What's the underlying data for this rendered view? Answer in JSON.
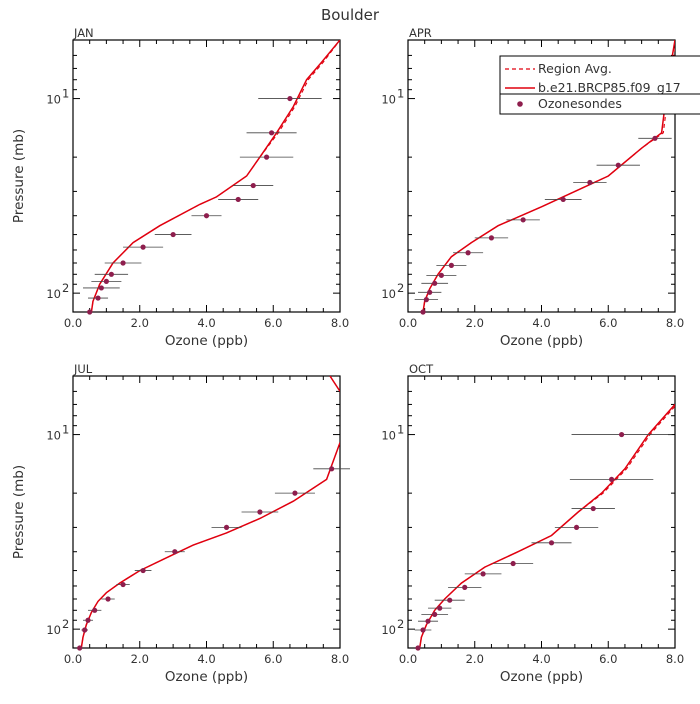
{
  "figure_title": "Boulder",
  "legend": {
    "region_avg": "Region Avg.",
    "model": "b.e21.BRCP85.f09_g17",
    "obs": "Ozonesondes"
  },
  "colors": {
    "model": "#e0000f",
    "region_avg": "#e0000f",
    "obs": "#8e1e4d",
    "errbar": "#444444"
  },
  "chart_data": [
    {
      "type": "line",
      "title": "JAN",
      "xlabel": "Ozone (ppb)",
      "ylabel": "Pressure (mb)",
      "xlim": [
        0.0,
        8.0
      ],
      "ylim": [
        125,
        5
      ],
      "xticks": [
        "0.0",
        "2.0",
        "4.0",
        "6.0",
        "8.0"
      ],
      "yticks": [
        {
          "value": 10,
          "label": "10",
          "exp": "1"
        },
        {
          "value": 100,
          "label": "10",
          "exp": "2"
        }
      ],
      "model": {
        "x": [
          0.55,
          0.6,
          0.8,
          1.2,
          1.8,
          2.6,
          3.8,
          4.3,
          5.2,
          5.6,
          6.1,
          6.6,
          7.0,
          7.45,
          8.0
        ],
        "y": [
          125,
          110,
          90,
          70,
          55,
          45,
          35,
          32,
          25,
          20,
          15,
          11,
          8,
          6.5,
          5
        ]
      },
      "region_avg": {
        "x": [
          0.55,
          0.6,
          0.8,
          1.2,
          1.8,
          2.6,
          3.8,
          4.3,
          5.2,
          5.6,
          6.15,
          6.65,
          7.05,
          7.5,
          8.0
        ],
        "y": [
          125,
          110,
          90,
          70,
          55,
          45,
          35,
          32,
          25,
          20,
          15,
          11,
          8,
          6.5,
          5
        ]
      },
      "ozonesondes": {
        "x": [
          0.5,
          0.75,
          0.85,
          1.0,
          1.15,
          1.5,
          2.1,
          3.0,
          4.0,
          4.95,
          5.4,
          5.8,
          5.95,
          6.5
        ],
        "y": [
          125,
          106,
          94,
          87,
          80,
          70,
          58,
          50,
          40,
          33,
          28,
          20,
          15,
          10
        ],
        "xerr": [
          0.0,
          0.3,
          0.55,
          0.45,
          0.5,
          0.55,
          0.6,
          0.55,
          0.45,
          0.6,
          0.6,
          0.8,
          0.75,
          0.95
        ]
      }
    },
    {
      "type": "line",
      "title": "APR",
      "xlabel": "Ozone (ppb)",
      "ylabel": "",
      "xlim": [
        0.0,
        8.0
      ],
      "ylim": [
        125,
        5
      ],
      "xticks": [
        "0.0",
        "2.0",
        "4.0",
        "6.0",
        "8.0"
      ],
      "yticks": [
        {
          "value": 10,
          "label": "10",
          "exp": "1"
        },
        {
          "value": 100,
          "label": "10",
          "exp": "2"
        }
      ],
      "model": {
        "x": [
          0.45,
          0.5,
          0.65,
          0.9,
          1.3,
          1.9,
          2.7,
          4.0,
          5.0,
          6.0,
          7.0,
          7.6,
          7.8,
          8.0
        ],
        "y": [
          125,
          110,
          95,
          80,
          65,
          55,
          45,
          36,
          30,
          25,
          18,
          15,
          8,
          5
        ]
      },
      "region_avg": {
        "x": [
          0.45,
          0.5,
          0.65,
          0.9,
          1.3,
          1.9,
          2.7,
          4.0,
          5.0,
          6.0,
          7.0,
          7.65,
          7.85,
          8.05
        ],
        "y": [
          125,
          110,
          95,
          80,
          65,
          55,
          45,
          36,
          30,
          25,
          18,
          15,
          8,
          5
        ]
      },
      "ozonesondes": {
        "x": [
          0.45,
          0.55,
          0.65,
          0.8,
          1.0,
          1.3,
          1.8,
          2.5,
          3.45,
          4.65,
          5.45,
          6.3,
          7.4
        ],
        "y": [
          125,
          108,
          99,
          89,
          81,
          72,
          62,
          52,
          42,
          33,
          27,
          22,
          16
        ],
        "xerr": [
          0.0,
          0.35,
          0.35,
          0.4,
          0.45,
          0.45,
          0.45,
          0.5,
          0.5,
          0.55,
          0.5,
          0.65,
          0.5
        ]
      }
    },
    {
      "type": "line",
      "title": "JUL",
      "xlabel": "Ozone (ppb)",
      "ylabel": "Pressure (mb)",
      "xlim": [
        0.0,
        8.0
      ],
      "ylim": [
        125,
        5
      ],
      "xticks": [
        "0.0",
        "2.0",
        "4.0",
        "6.0",
        "8.0"
      ],
      "yticks": [
        {
          "value": 10,
          "label": "10",
          "exp": "1"
        },
        {
          "value": 100,
          "label": "10",
          "exp": "2"
        }
      ],
      "model": {
        "x": [
          0.25,
          0.3,
          0.4,
          0.55,
          0.75,
          1.0,
          1.4,
          2.0,
          2.8,
          3.6,
          4.6,
          5.6,
          6.6,
          7.6,
          8.0
        ],
        "y": [
          125,
          110,
          95,
          82,
          72,
          65,
          58,
          50,
          43,
          37,
          32,
          27,
          22,
          17,
          11
        ]
      },
      "region_avg": {
        "x": [
          0.25,
          0.3,
          0.4,
          0.55,
          0.75,
          1.0,
          1.4,
          2.0,
          2.8,
          3.6,
          4.6,
          5.6,
          6.6,
          7.6,
          8.0
        ],
        "y": [
          125,
          110,
          95,
          82,
          72,
          65,
          58,
          50,
          43,
          37,
          32,
          27,
          22,
          17,
          11
        ]
      },
      "model_upper": {
        "x": [
          7.7,
          8.0
        ],
        "y": [
          5,
          6
        ]
      },
      "ozonesondes": {
        "x": [
          0.2,
          0.35,
          0.45,
          0.65,
          1.05,
          1.5,
          2.1,
          3.05,
          4.6,
          5.6,
          6.65,
          7.75
        ],
        "y": [
          125,
          101,
          90,
          80,
          70,
          59,
          50,
          40,
          30,
          25,
          20,
          15
        ],
        "xerr": [
          0.0,
          0.1,
          0.15,
          0.2,
          0.2,
          0.2,
          0.25,
          0.3,
          0.45,
          0.55,
          0.6,
          0.55
        ]
      }
    },
    {
      "type": "line",
      "title": "OCT",
      "xlabel": "Ozone (ppb)",
      "ylabel": "",
      "xlim": [
        0.0,
        8.0
      ],
      "ylim": [
        125,
        5
      ],
      "xticks": [
        "0.0",
        "2.0",
        "4.0",
        "6.0",
        "8.0"
      ],
      "yticks": [
        {
          "value": 10,
          "label": "10",
          "exp": "1"
        },
        {
          "value": 100,
          "label": "10",
          "exp": "2"
        }
      ],
      "model": {
        "x": [
          0.35,
          0.4,
          0.55,
          0.8,
          1.1,
          1.6,
          2.3,
          3.3,
          4.3,
          5.1,
          5.8,
          6.5,
          7.2,
          8.0
        ],
        "y": [
          125,
          110,
          95,
          80,
          70,
          58,
          48,
          40,
          33,
          25,
          20,
          15,
          10,
          7
        ]
      },
      "region_avg": {
        "x": [
          0.35,
          0.4,
          0.55,
          0.8,
          1.1,
          1.6,
          2.3,
          3.3,
          4.3,
          5.1,
          5.85,
          6.55,
          7.25,
          8.05
        ],
        "y": [
          125,
          110,
          95,
          80,
          70,
          58,
          48,
          40,
          33,
          25,
          20,
          15,
          10,
          7
        ]
      },
      "ozonesondes": {
        "x": [
          0.3,
          0.45,
          0.6,
          0.8,
          0.95,
          1.25,
          1.7,
          2.25,
          3.15,
          4.3,
          5.05,
          5.55,
          6.1,
          6.4
        ],
        "y": [
          125,
          101,
          91,
          84,
          78,
          71,
          61,
          52,
          46,
          36,
          30,
          24,
          17,
          10
        ],
        "xerr": [
          0.0,
          0.25,
          0.3,
          0.4,
          0.35,
          0.45,
          0.5,
          0.55,
          0.6,
          0.6,
          0.65,
          0.65,
          1.25,
          1.5
        ]
      }
    }
  ]
}
